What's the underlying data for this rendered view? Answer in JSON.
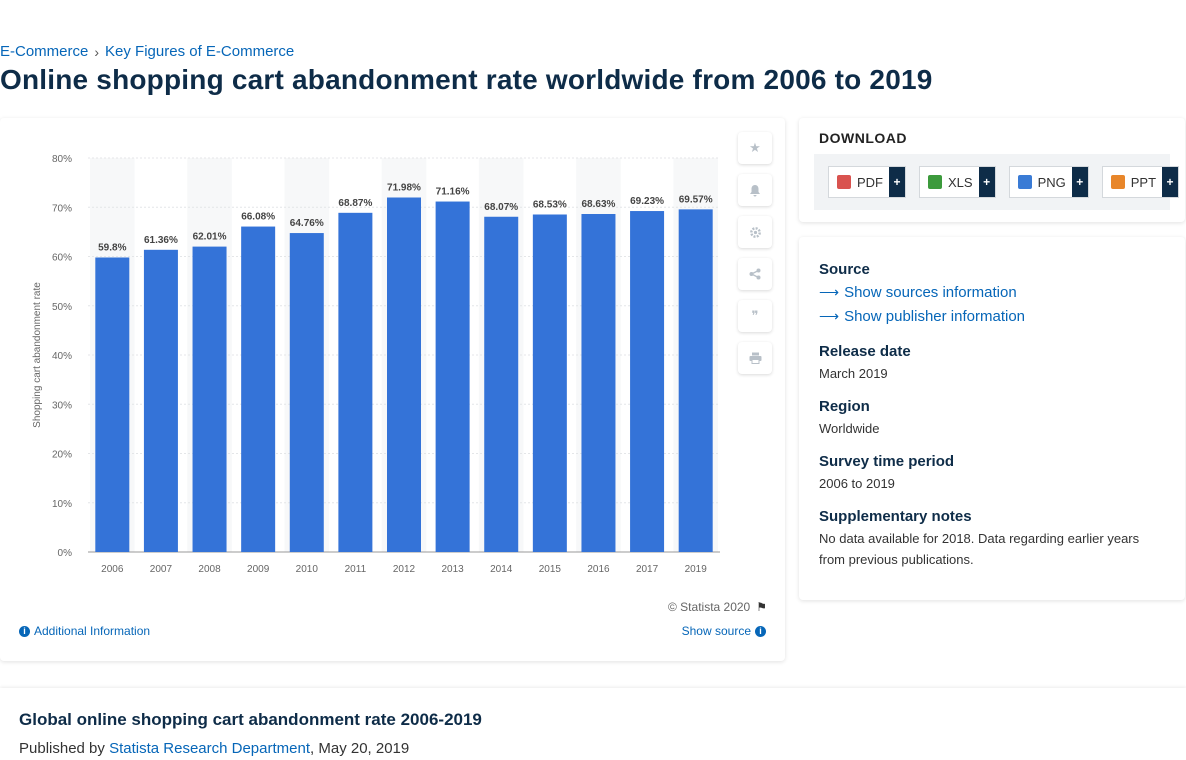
{
  "breadcrumb": {
    "item1": "E-Commerce",
    "separator": "›",
    "item2": "Key Figures of E-Commerce"
  },
  "page_title": "Online shopping cart abandonment rate worldwide from 2006 to 2019",
  "chart_data": {
    "type": "bar",
    "categories": [
      "2006",
      "2007",
      "2008",
      "2009",
      "2010",
      "2011",
      "2012",
      "2013",
      "2014",
      "2015",
      "2016",
      "2017",
      "2019"
    ],
    "values": [
      59.8,
      61.36,
      62.01,
      66.08,
      64.76,
      68.87,
      71.98,
      71.16,
      68.07,
      68.53,
      68.63,
      69.23,
      69.57
    ],
    "value_labels": [
      "59.8%",
      "61.36%",
      "62.01%",
      "66.08%",
      "64.76%",
      "68.87%",
      "71.98%",
      "71.16%",
      "68.07%",
      "68.53%",
      "68.63%",
      "69.23%",
      "69.57%"
    ],
    "ylabel": "Shopping cart abandonment rate",
    "ylim": [
      0,
      80
    ],
    "yticks": [
      0,
      10,
      20,
      30,
      40,
      50,
      60,
      70,
      80
    ],
    "ytick_labels": [
      "0%",
      "10%",
      "20%",
      "30%",
      "40%",
      "50%",
      "60%",
      "70%",
      "80%"
    ],
    "bar_color": "#3473d8",
    "grid": true
  },
  "chart_footer": {
    "copyright": "© Statista 2020",
    "additional_info": "Additional Information",
    "show_source": "Show source"
  },
  "tools": {
    "star": "star-icon",
    "bell": "bell-icon",
    "gear": "gear-icon",
    "share": "share-icon",
    "quote": "quote-icon",
    "print": "print-icon"
  },
  "download": {
    "title": "DOWNLOAD",
    "buttons": [
      {
        "label": "PDF",
        "color": "#d9534f"
      },
      {
        "label": "XLS",
        "color": "#3c9a3c"
      },
      {
        "label": "PNG",
        "color": "#3a7bd5"
      },
      {
        "label": "PPT",
        "color": "#e8862a"
      }
    ],
    "plus": "+"
  },
  "meta": {
    "source_label": "Source",
    "sources_link": "Show sources information",
    "publisher_link": "Show publisher information",
    "release_label": "Release date",
    "release_value": "March 2019",
    "region_label": "Region",
    "region_value": "Worldwide",
    "survey_label": "Survey time period",
    "survey_value": "2006 to 2019",
    "notes_label": "Supplementary notes",
    "notes_value": "No data available for 2018. Data regarding earlier years from previous publications."
  },
  "bottom": {
    "title": "Global online shopping cart abandonment rate 2006-2019",
    "published_prefix": "Published by",
    "publisher": "Statista Research Department",
    "date": ", May 20, 2019"
  }
}
